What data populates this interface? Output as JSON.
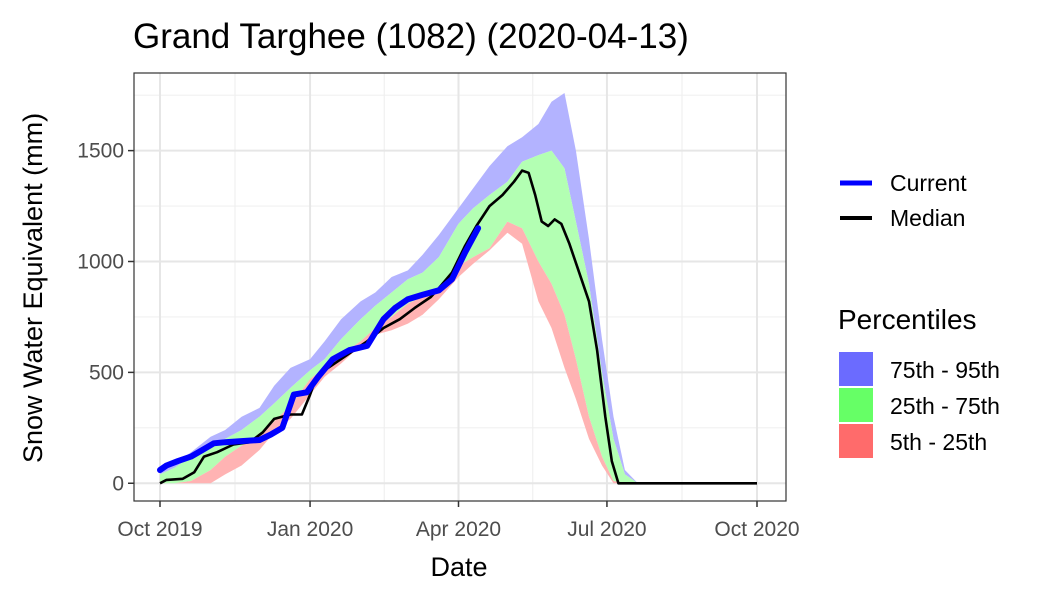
{
  "chart_data": {
    "type": "area",
    "title": "Grand Targhee (1082) (2020-04-13)",
    "xlabel": "Date",
    "ylabel": "Snow Water Equivalent (mm)",
    "x_range": [
      "2019-10-01",
      "2020-10-01"
    ],
    "y_range": [
      -80,
      1850
    ],
    "x_ticks": [
      {
        "date": "2019-10-01",
        "label": "Oct 2019"
      },
      {
        "date": "2020-01-01",
        "label": "Jan 2020"
      },
      {
        "date": "2020-04-01",
        "label": "Apr 2020"
      },
      {
        "date": "2020-07-01",
        "label": "Jul 2020"
      },
      {
        "date": "2020-10-01",
        "label": "Oct 2020"
      }
    ],
    "y_ticks": [
      0,
      500,
      1000,
      1500
    ],
    "grid": true,
    "legend_lines": [
      {
        "name": "Current",
        "color": "#0000ff"
      },
      {
        "name": "Median",
        "color": "#000000"
      }
    ],
    "legend_fill_title": "Percentiles",
    "legend_fills": [
      {
        "name": "75th - 95th",
        "color": "#6b6bff"
      },
      {
        "name": "25th - 75th",
        "color": "#66ff66"
      },
      {
        "name": "5th - 25th",
        "color": "#ff6b6b"
      }
    ],
    "band_colors": {
      "p75_p95": "#b3b3ff",
      "p25_p75": "#b3ffb3",
      "p5_p25": "#ffb3b3"
    },
    "percentile_x": [
      "2019-10-01",
      "2019-10-10",
      "2019-10-20",
      "2019-11-01",
      "2019-11-10",
      "2019-11-20",
      "2019-12-01",
      "2019-12-10",
      "2019-12-20",
      "2020-01-01",
      "2020-01-10",
      "2020-01-20",
      "2020-02-01",
      "2020-02-10",
      "2020-02-20",
      "2020-03-01",
      "2020-03-10",
      "2020-03-20",
      "2020-04-01",
      "2020-04-10",
      "2020-04-20",
      "2020-05-01",
      "2020-05-10",
      "2020-05-20",
      "2020-05-28",
      "2020-06-05",
      "2020-06-12",
      "2020-06-20",
      "2020-06-28",
      "2020-07-05",
      "2020-07-12",
      "2020-07-20",
      "2020-08-01",
      "2020-09-01",
      "2020-09-20",
      "2020-10-01"
    ],
    "p5": [
      0,
      0,
      0,
      0,
      40,
      80,
      150,
      230,
      290,
      400,
      480,
      540,
      620,
      670,
      690,
      720,
      760,
      830,
      930,
      990,
      1050,
      1130,
      1080,
      820,
      700,
      520,
      380,
      200,
      80,
      0,
      0,
      0,
      0,
      0,
      0,
      0
    ],
    "p25": [
      0,
      0,
      10,
      60,
      120,
      170,
      210,
      280,
      350,
      470,
      520,
      580,
      640,
      700,
      750,
      810,
      840,
      870,
      980,
      1020,
      1060,
      1180,
      1150,
      1000,
      900,
      760,
      560,
      300,
      120,
      10,
      0,
      0,
      0,
      0,
      0,
      0
    ],
    "p75": [
      40,
      70,
      120,
      180,
      200,
      240,
      300,
      360,
      430,
      510,
      560,
      650,
      740,
      800,
      860,
      920,
      950,
      1020,
      1170,
      1240,
      1300,
      1360,
      1450,
      1480,
      1500,
      1420,
      1180,
      900,
      500,
      200,
      40,
      0,
      0,
      0,
      0,
      0
    ],
    "p95": [
      60,
      90,
      140,
      210,
      240,
      300,
      340,
      440,
      520,
      560,
      640,
      740,
      820,
      860,
      930,
      960,
      1030,
      1120,
      1240,
      1330,
      1430,
      1520,
      1560,
      1620,
      1720,
      1760,
      1500,
      1100,
      650,
      300,
      60,
      0,
      0,
      0,
      0,
      0
    ],
    "median": [
      [
        "2019-10-01",
        0
      ],
      [
        "2019-10-05",
        15
      ],
      [
        "2019-10-15",
        20
      ],
      [
        "2019-10-22",
        50
      ],
      [
        "2019-10-28",
        120
      ],
      [
        "2019-11-05",
        140
      ],
      [
        "2019-11-15",
        175
      ],
      [
        "2019-11-25",
        185
      ],
      [
        "2019-12-03",
        230
      ],
      [
        "2019-12-10",
        290
      ],
      [
        "2019-12-20",
        310
      ],
      [
        "2019-12-27",
        310
      ],
      [
        "2020-01-01",
        400
      ],
      [
        "2020-01-05",
        480
      ],
      [
        "2020-01-12",
        520
      ],
      [
        "2020-01-20",
        560
      ],
      [
        "2020-01-28",
        600
      ],
      [
        "2020-02-05",
        640
      ],
      [
        "2020-02-15",
        700
      ],
      [
        "2020-02-25",
        740
      ],
      [
        "2020-03-05",
        790
      ],
      [
        "2020-03-15",
        840
      ],
      [
        "2020-03-20",
        880
      ],
      [
        "2020-03-28",
        950
      ],
      [
        "2020-04-05",
        1070
      ],
      [
        "2020-04-12",
        1160
      ],
      [
        "2020-04-20",
        1250
      ],
      [
        "2020-04-28",
        1300
      ],
      [
        "2020-05-05",
        1360
      ],
      [
        "2020-05-10",
        1410
      ],
      [
        "2020-05-14",
        1400
      ],
      [
        "2020-05-18",
        1300
      ],
      [
        "2020-05-22",
        1180
      ],
      [
        "2020-05-26",
        1160
      ],
      [
        "2020-05-30",
        1190
      ],
      [
        "2020-06-03",
        1170
      ],
      [
        "2020-06-08",
        1080
      ],
      [
        "2020-06-14",
        950
      ],
      [
        "2020-06-20",
        820
      ],
      [
        "2020-06-25",
        600
      ],
      [
        "2020-06-30",
        300
      ],
      [
        "2020-07-04",
        100
      ],
      [
        "2020-07-08",
        0
      ],
      [
        "2020-10-01",
        0
      ]
    ],
    "current": [
      [
        "2019-10-01",
        60
      ],
      [
        "2019-10-05",
        80
      ],
      [
        "2019-10-12",
        100
      ],
      [
        "2019-10-20",
        120
      ],
      [
        "2019-10-27",
        150
      ],
      [
        "2019-11-03",
        180
      ],
      [
        "2019-11-10",
        185
      ],
      [
        "2019-11-20",
        190
      ],
      [
        "2019-12-01",
        195
      ],
      [
        "2019-12-08",
        220
      ],
      [
        "2019-12-15",
        250
      ],
      [
        "2019-12-22",
        400
      ],
      [
        "2019-12-30",
        410
      ],
      [
        "2020-01-06",
        480
      ],
      [
        "2020-01-15",
        560
      ],
      [
        "2020-01-25",
        600
      ],
      [
        "2020-02-05",
        620
      ],
      [
        "2020-02-15",
        740
      ],
      [
        "2020-02-22",
        790
      ],
      [
        "2020-03-01",
        830
      ],
      [
        "2020-03-10",
        850
      ],
      [
        "2020-03-20",
        870
      ],
      [
        "2020-03-28",
        920
      ],
      [
        "2020-04-05",
        1040
      ],
      [
        "2020-04-13",
        1150
      ]
    ]
  }
}
